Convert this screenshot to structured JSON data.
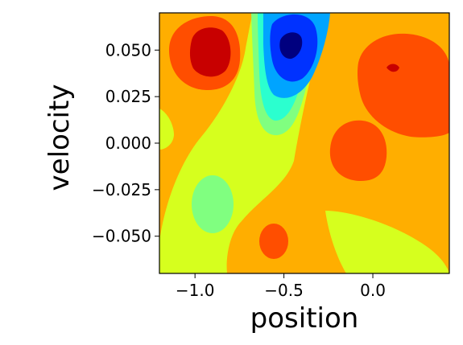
{
  "chart_data": {
    "type": "heatmap",
    "title": "",
    "xlabel": "position",
    "ylabel": "velocity",
    "xlim": [
      -1.2,
      0.43
    ],
    "ylim": [
      -0.07,
      0.07
    ],
    "x_ticks": [
      -1.0,
      -0.5,
      0.0
    ],
    "x_tick_labels": [
      "−1.0",
      "−0.5",
      "0.0"
    ],
    "y_ticks": [
      -0.05,
      -0.025,
      0.0,
      0.025,
      0.05
    ],
    "y_tick_labels": [
      "−0.050",
      "−0.025",
      "0.000",
      "0.025",
      "0.050"
    ],
    "grid": false,
    "colormap": "jet",
    "level_colors": [
      "#d6ff1e",
      "#80ff80",
      "#2bffcf",
      "#00a4ff",
      "#0032ff",
      "#00007f"
    ],
    "high_colors": [
      "#ffae00",
      "#ff4e00",
      "#c80000"
    ],
    "features": [
      {
        "kind": "low",
        "x": -0.43,
        "y": 0.052,
        "level": 5
      },
      {
        "kind": "high",
        "x": -0.93,
        "y": 0.05,
        "level": 2
      },
      {
        "kind": "high",
        "x": 0.13,
        "y": 0.04,
        "level": 2
      },
      {
        "kind": "high",
        "x": 0.06,
        "y": 0.028,
        "level": 1
      },
      {
        "kind": "high",
        "x": -0.02,
        "y": -0.006,
        "level": 1
      },
      {
        "kind": "high",
        "x": -0.54,
        "y": -0.051,
        "level": 1
      },
      {
        "kind": "low",
        "x": -0.89,
        "y": -0.033,
        "level": 1
      },
      {
        "kind": "low",
        "x": -0.62,
        "y": -0.01,
        "level": 0
      },
      {
        "kind": "low",
        "x": 0.1,
        "y": -0.055,
        "level": 0
      },
      {
        "kind": "low",
        "x": -1.2,
        "y": 0.007,
        "level": 0
      }
    ]
  }
}
